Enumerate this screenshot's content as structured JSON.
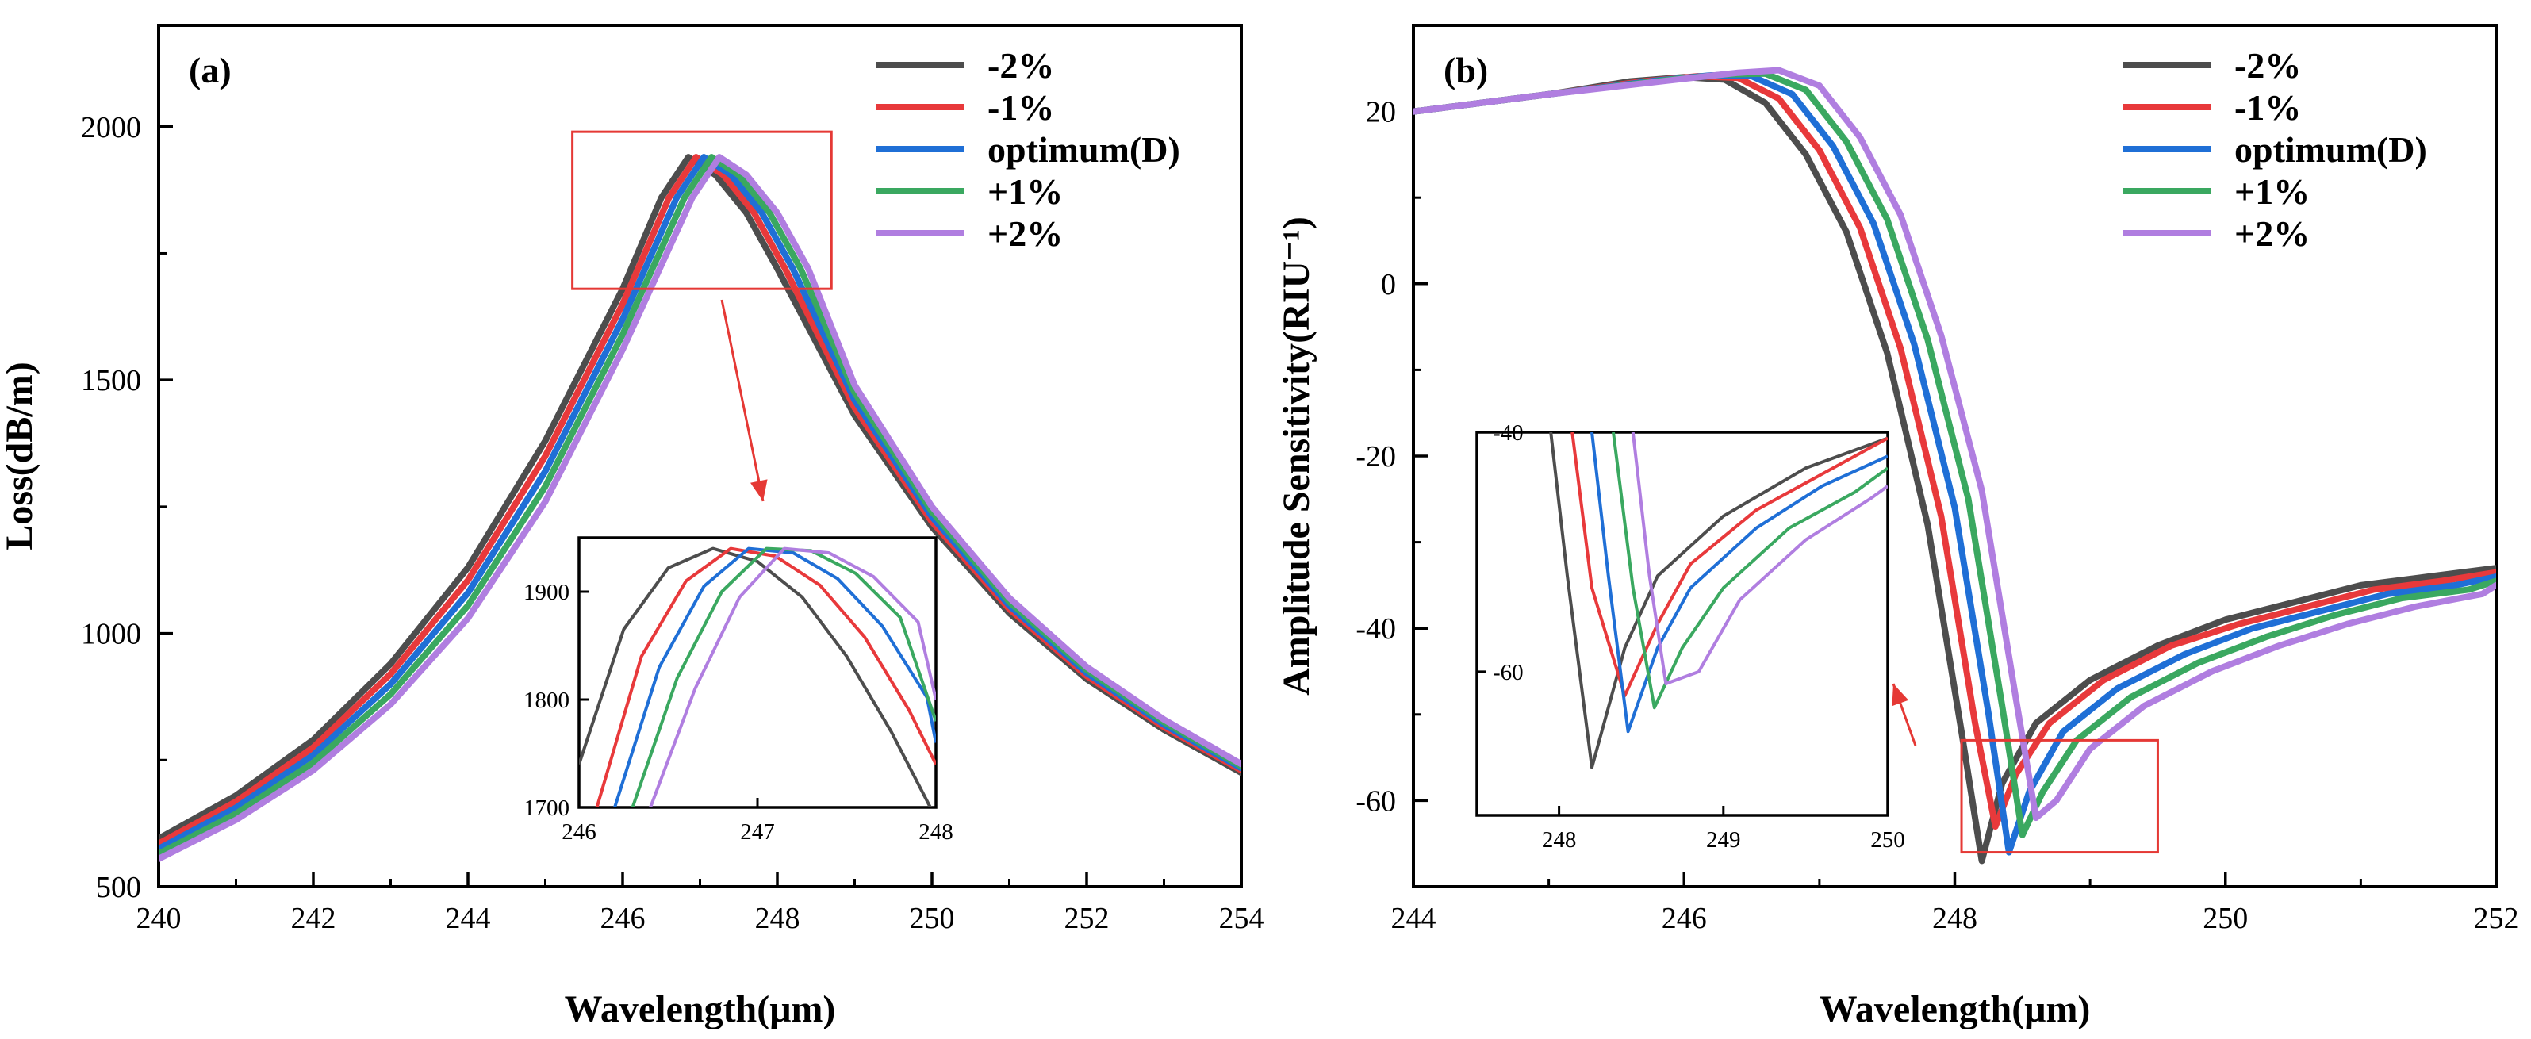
{
  "chart_data": [
    {
      "panel": "(a)",
      "type": "line",
      "xlabel": "Wavelength(μm)",
      "ylabel": "Loss(dB/m)",
      "xlim": [
        240,
        254
      ],
      "ylim": [
        500,
        2200
      ],
      "xticks": [
        "240",
        "242",
        "244",
        "246",
        "248",
        "250",
        "252",
        "254"
      ],
      "yticks": [
        "500",
        "1000",
        "1500",
        "2000"
      ],
      "legend_position": "top-right",
      "series": [
        {
          "name": "-2%",
          "color": "#4d4d4d",
          "x": [
            240,
            241,
            242,
            243,
            244,
            245,
            246,
            246.5,
            246.85,
            247.2,
            247.6,
            248,
            249,
            250,
            251,
            252,
            253,
            254
          ],
          "values": [
            595,
            680,
            790,
            940,
            1130,
            1380,
            1680,
            1860,
            1940,
            1905,
            1830,
            1720,
            1430,
            1210,
            1040,
            910,
            810,
            725
          ]
        },
        {
          "name": "-1%",
          "color": "#e8393b",
          "x": [
            240,
            241,
            242,
            243,
            244,
            245,
            246,
            246.6,
            246.95,
            247.3,
            247.7,
            248.1,
            249,
            250,
            251,
            252,
            253,
            254
          ],
          "values": [
            585,
            668,
            775,
            920,
            1105,
            1350,
            1650,
            1860,
            1940,
            1905,
            1830,
            1720,
            1445,
            1220,
            1048,
            916,
            815,
            730
          ]
        },
        {
          "name": "optimum(D)",
          "color": "#1f6fd6",
          "x": [
            240,
            241,
            242,
            243,
            244,
            245,
            246,
            246.7,
            247.05,
            247.4,
            247.8,
            248.2,
            249,
            250,
            251,
            252,
            253,
            254
          ],
          "values": [
            575,
            656,
            760,
            900,
            1080,
            1320,
            1620,
            1860,
            1940,
            1905,
            1830,
            1720,
            1460,
            1230,
            1055,
            922,
            820,
            734
          ]
        },
        {
          "name": "+1%",
          "color": "#3aa860",
          "x": [
            240,
            241,
            242,
            243,
            244,
            245,
            246,
            246.8,
            247.15,
            247.5,
            247.9,
            248.3,
            249,
            250,
            251,
            252,
            253,
            254
          ],
          "values": [
            565,
            644,
            745,
            880,
            1055,
            1290,
            1590,
            1860,
            1940,
            1905,
            1830,
            1720,
            1475,
            1240,
            1062,
            928,
            825,
            738
          ]
        },
        {
          "name": "+2%",
          "color": "#b07ee0",
          "x": [
            240,
            241,
            242,
            243,
            244,
            245,
            246,
            246.9,
            247.25,
            247.6,
            248,
            248.4,
            249,
            250,
            251,
            252,
            253,
            254
          ],
          "values": [
            555,
            632,
            730,
            860,
            1030,
            1260,
            1560,
            1860,
            1940,
            1905,
            1830,
            1720,
            1490,
            1250,
            1070,
            934,
            830,
            742
          ]
        }
      ],
      "inset": {
        "xlim": [
          246,
          248
        ],
        "ylim": [
          1700,
          1950
        ],
        "xticks": [
          "246",
          "247",
          "248"
        ],
        "yticks": [
          "1700",
          "1800",
          "1900"
        ],
        "series": [
          {
            "name": "-2%",
            "x": [
              246,
              246.25,
              246.5,
              246.75,
              247,
              247.25,
              247.5,
              247.75,
              248
            ],
            "values": [
              1740,
              1865,
              1922,
              1940,
              1928,
              1895,
              1840,
              1770,
              1690
            ]
          },
          {
            "name": "-1%",
            "x": [
              246.1,
              246.35,
              246.6,
              246.85,
              247.1,
              247.35,
              247.6,
              247.85,
              248
            ],
            "values": [
              1700,
              1840,
              1910,
              1940,
              1933,
              1906,
              1858,
              1790,
              1740
            ]
          },
          {
            "name": "optimum(D)",
            "x": [
              246.2,
              246.45,
              246.7,
              246.95,
              247.2,
              247.45,
              247.7,
              247.95,
              248
            ],
            "values": [
              1700,
              1830,
              1905,
              1940,
              1936,
              1912,
              1868,
              1802,
              1760
            ]
          },
          {
            "name": "+1%",
            "x": [
              246.3,
              246.55,
              246.8,
              247.05,
              247.3,
              247.55,
              247.8,
              248
            ],
            "values": [
              1700,
              1820,
              1900,
              1940,
              1938,
              1917,
              1876,
              1780
            ]
          },
          {
            "name": "+2%",
            "x": [
              246.4,
              246.65,
              246.9,
              247.15,
              247.4,
              247.65,
              247.9,
              248
            ],
            "values": [
              1700,
              1810,
              1895,
              1940,
              1936,
              1914,
              1872,
              1800
            ]
          }
        ]
      }
    },
    {
      "panel": "(b)",
      "type": "line",
      "xlabel": "Wavelength(μm)",
      "ylabel": "Amplitude Sensitivity(RIU⁻¹)",
      "xlim": [
        244,
        252
      ],
      "ylim": [
        -70,
        30
      ],
      "xticks": [
        "244",
        "246",
        "248",
        "250",
        "252"
      ],
      "yticks": [
        "-60",
        "-40",
        "-20",
        "0",
        "20"
      ],
      "legend_position": "top-right",
      "series": [
        {
          "name": "-2%",
          "color": "#4d4d4d",
          "x": [
            244,
            245,
            245.6,
            246,
            246.3,
            246.6,
            246.9,
            247.2,
            247.5,
            247.8,
            248.05,
            248.2,
            248.35,
            248.6,
            249,
            249.5,
            250,
            250.5,
            251,
            251.5,
            252
          ],
          "values": [
            20,
            22,
            23.5,
            24,
            23.7,
            21,
            15,
            6,
            -8,
            -28,
            -52,
            -67,
            -58,
            -51,
            -46,
            -42,
            -39,
            -37,
            -35,
            -34,
            -33
          ]
        },
        {
          "name": "-1%",
          "color": "#e8393b",
          "x": [
            244,
            245,
            245.7,
            246.1,
            246.4,
            246.7,
            247.0,
            247.3,
            247.6,
            247.9,
            248.15,
            248.3,
            248.45,
            248.7,
            249.1,
            249.6,
            250.1,
            250.6,
            251.1,
            251.6,
            252
          ],
          "values": [
            20,
            22,
            23.5,
            24.1,
            23.9,
            21.5,
            15.5,
            6.5,
            -7.5,
            -27,
            -51,
            -63,
            -57,
            -51,
            -46,
            -42,
            -39.5,
            -37.5,
            -35.5,
            -34.5,
            -33.5
          ]
        },
        {
          "name": "optimum(D)",
          "color": "#1f6fd6",
          "x": [
            244,
            245,
            245.8,
            246.2,
            246.5,
            246.8,
            247.1,
            247.4,
            247.7,
            248.0,
            248.25,
            248.4,
            248.55,
            248.8,
            249.2,
            249.7,
            250.2,
            250.7,
            251.2,
            251.7,
            252
          ],
          "values": [
            20,
            22,
            23.6,
            24.2,
            24.1,
            22,
            16,
            7,
            -7,
            -26,
            -50,
            -66,
            -59,
            -52,
            -47,
            -43,
            -40,
            -38,
            -36,
            -35,
            -34
          ]
        },
        {
          "name": "+1%",
          "color": "#3aa860",
          "x": [
            244,
            245,
            245.9,
            246.3,
            246.6,
            246.9,
            247.2,
            247.5,
            247.8,
            248.1,
            248.35,
            248.5,
            248.65,
            248.9,
            249.3,
            249.8,
            250.3,
            250.8,
            251.3,
            251.8,
            252
          ],
          "values": [
            20,
            22,
            23.7,
            24.3,
            24.4,
            22.5,
            16.5,
            7.5,
            -6.5,
            -25,
            -49,
            -64,
            -59,
            -53,
            -48,
            -44,
            -41,
            -38.5,
            -36.5,
            -35.5,
            -34.5
          ]
        },
        {
          "name": "+2%",
          "color": "#b07ee0",
          "x": [
            244,
            245,
            246.0,
            246.4,
            246.7,
            247.0,
            247.3,
            247.6,
            247.9,
            248.2,
            248.45,
            248.6,
            248.75,
            249.0,
            249.4,
            249.9,
            250.4,
            250.9,
            251.4,
            251.9,
            252
          ],
          "values": [
            20,
            22,
            23.8,
            24.5,
            24.8,
            23,
            17,
            8,
            -6,
            -24,
            -48,
            -62,
            -60,
            -54,
            -49,
            -45,
            -42,
            -39.5,
            -37.5,
            -36,
            -35
          ]
        }
      ],
      "inset": {
        "xlim": [
          247.5,
          250
        ],
        "ylim": [
          -72,
          -40
        ],
        "xticks": [
          "248",
          "249",
          "250"
        ],
        "yticks": [
          "-60",
          "-40"
        ],
        "series": [
          {
            "name": "-2%",
            "x": [
              247.95,
              248.05,
              248.2,
              248.4,
              248.6,
              249,
              249.5,
              250
            ],
            "values": [
              -40,
              -52,
              -68,
              -58,
              -52,
              -47,
              -43,
              -40.5
            ]
          },
          {
            "name": "-1%",
            "x": [
              248.08,
              248.2,
              248.4,
              248.6,
              248.8,
              249.2,
              249.6,
              250
            ],
            "values": [
              -40,
              -53,
              -62,
              -56,
              -51,
              -46.5,
              -43.5,
              -40.5
            ]
          },
          {
            "name": "optimum(D)",
            "x": [
              248.2,
              248.3,
              248.42,
              248.6,
              248.8,
              249.2,
              249.6,
              250
            ],
            "values": [
              -40,
              -52,
              -65,
              -58,
              -53,
              -48,
              -44.5,
              -42
            ]
          },
          {
            "name": "+1%",
            "x": [
              248.33,
              248.45,
              248.58,
              248.75,
              249,
              249.4,
              249.8,
              250
            ],
            "values": [
              -40,
              -53,
              -63,
              -58,
              -53,
              -48,
              -45,
              -43
            ]
          },
          {
            "name": "+2%",
            "x": [
              248.45,
              248.55,
              248.65,
              248.85,
              249.1,
              249.5,
              249.9,
              250
            ],
            "values": [
              -40,
              -52,
              -61,
              -60,
              -54,
              -49,
              -45.5,
              -44.5
            ]
          }
        ]
      }
    }
  ]
}
